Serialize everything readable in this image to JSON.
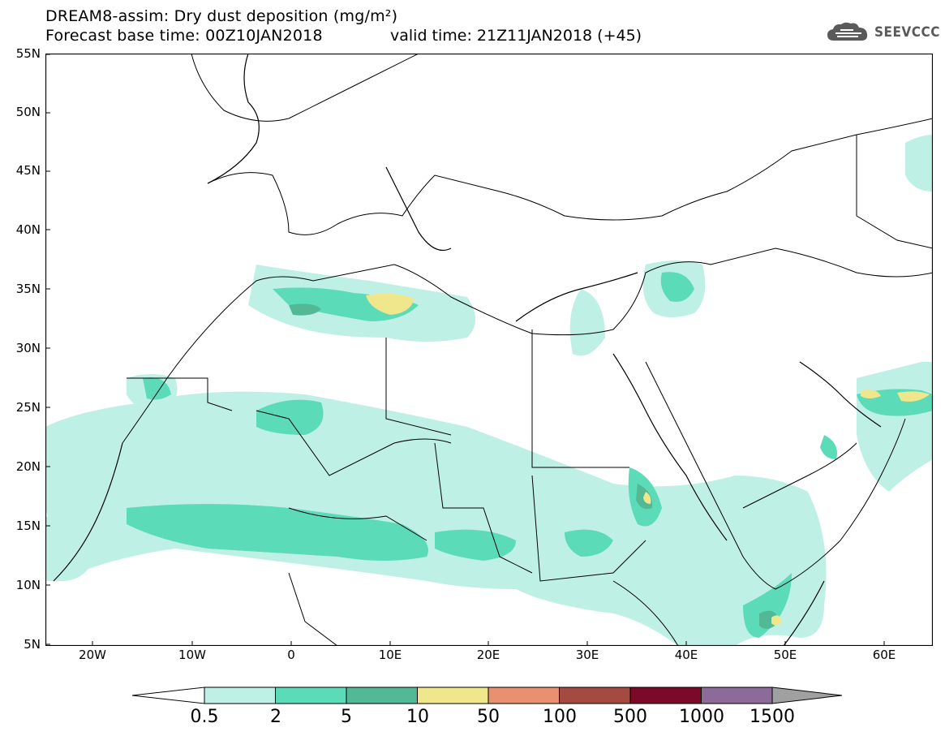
{
  "header": {
    "title": "DREAM8-assim: Dry dust deposition (mg/m²)",
    "forecast_base": "Forecast base time: 00Z10JAN2018",
    "valid_time": "valid time: 21Z11JAN2018 (+45)"
  },
  "logo": {
    "text": "SEEVCCC",
    "icon": "cloud-icon"
  },
  "axes": {
    "lat_labels": [
      "55N",
      "50N",
      "45N",
      "40N",
      "35N",
      "30N",
      "25N",
      "20N",
      "15N",
      "10N",
      "5N"
    ],
    "lon_labels": [
      "20W",
      "10W",
      "0",
      "10E",
      "20E",
      "30E",
      "40E",
      "50E",
      "60E"
    ]
  },
  "colorbar": {
    "labels": [
      "0.5",
      "2",
      "5",
      "10",
      "50",
      "100",
      "500",
      "1000",
      "1500"
    ],
    "colors": [
      "#bff0e6",
      "#5cdbb8",
      "#52b896",
      "#f0e68c",
      "#e89070",
      "#a54a40",
      "#7a0a28",
      "#8c6a9a",
      "#a0a0a0"
    ]
  }
}
